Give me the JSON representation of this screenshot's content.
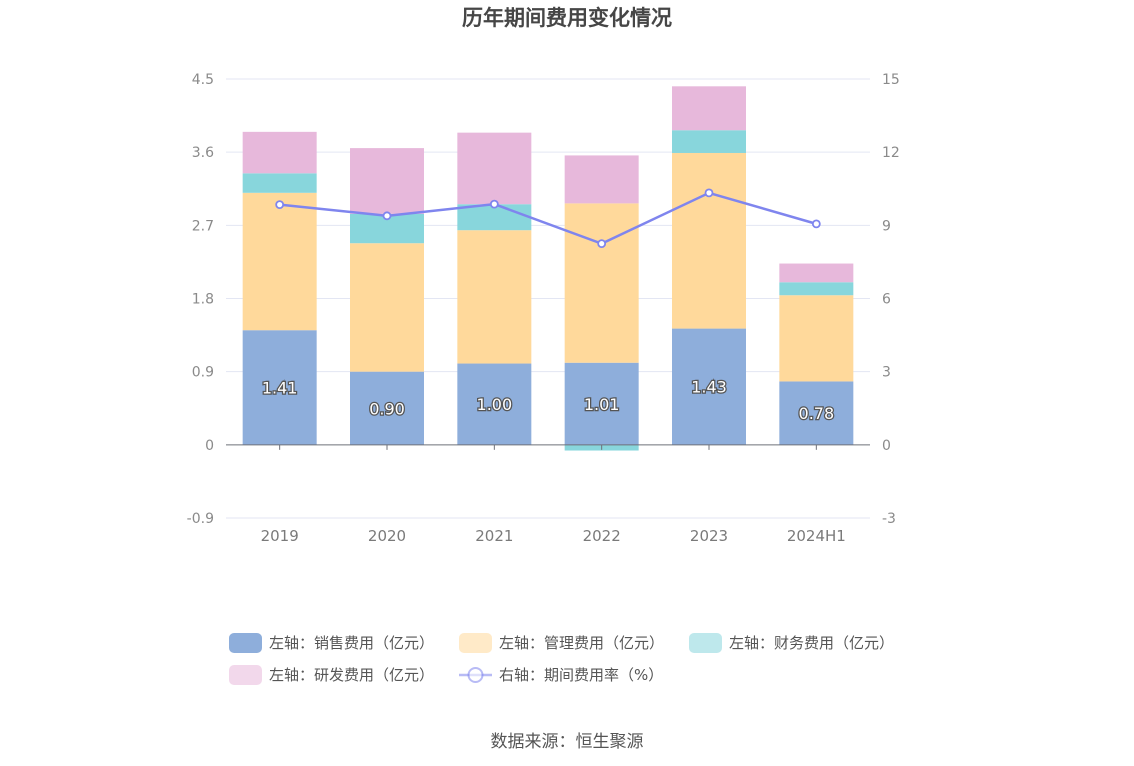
{
  "chart_data": {
    "type": "bar",
    "title": "历年期间费用变化情况",
    "categories": [
      "2019",
      "2020",
      "2021",
      "2022",
      "2023",
      "2024H1"
    ],
    "left_axis": {
      "ticks": [
        "4.5",
        "3.6",
        "2.7",
        "1.8",
        "0.9",
        "0",
        "-0.9"
      ],
      "ylim": [
        -0.9,
        4.5
      ]
    },
    "right_axis": {
      "ticks": [
        "15",
        "12",
        "9",
        "6",
        "3",
        "0",
        "-3"
      ],
      "ylim": [
        -3,
        15
      ]
    },
    "series": [
      {
        "name": "左轴：销售费用（亿元）",
        "type": "bar",
        "axis": "left",
        "color": "#8eaedb",
        "values": [
          1.41,
          0.9,
          1.0,
          1.01,
          1.43,
          0.78
        ],
        "labels": [
          "1.41",
          "0.90",
          "1.00",
          "1.01",
          "1.43",
          "0.78"
        ]
      },
      {
        "name": "左轴：管理费用（亿元）",
        "type": "bar",
        "axis": "left",
        "color": "#ffd99b",
        "values": [
          1.69,
          1.58,
          1.64,
          1.96,
          2.16,
          1.06
        ]
      },
      {
        "name": "左轴：财务费用（亿元）",
        "type": "bar",
        "axis": "left",
        "color": "#88d6dc",
        "values": [
          0.24,
          0.36,
          0.32,
          -0.07,
          0.28,
          0.16
        ]
      },
      {
        "name": "左轴：研发费用（亿元）",
        "type": "bar",
        "axis": "left",
        "color": "#e7b8db",
        "values": [
          0.51,
          0.81,
          0.88,
          0.59,
          0.54,
          0.23
        ]
      },
      {
        "name": "右轴：期间费用率（%）",
        "type": "line",
        "axis": "right",
        "color": "#7f85ee",
        "values": [
          9.85,
          9.39,
          9.87,
          8.25,
          10.33,
          9.06
        ]
      }
    ],
    "legend_position": "bottom",
    "grid": true
  },
  "source": "数据来源：恒生聚源"
}
